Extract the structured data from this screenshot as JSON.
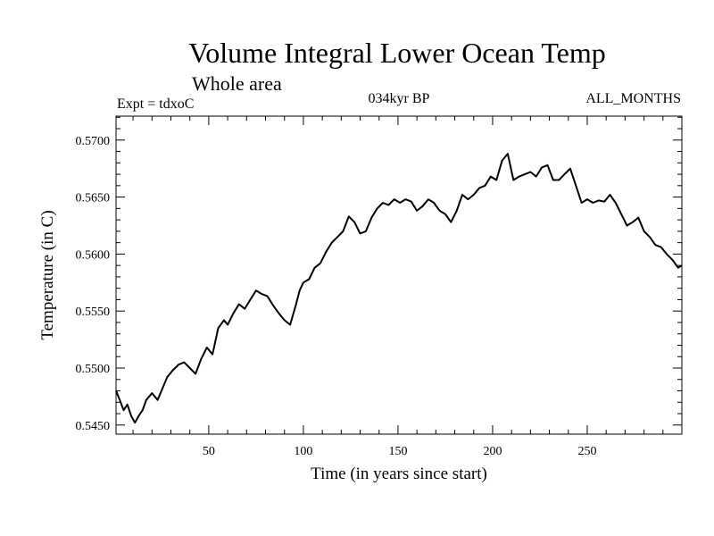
{
  "chart_data": {
    "type": "line",
    "title": "Volume Integral Lower Ocean Temp",
    "subtitle": "Whole area",
    "info_left": "Expt = tdxoC",
    "info_center": "034kyr BP",
    "info_right": "ALL_MONTHS",
    "xlabel": "Time (in years since start)",
    "ylabel": "Temperature (in C)",
    "xlim": [
      1,
      300
    ],
    "ylim": [
      0.5442,
      0.5721
    ],
    "x_ticks": [
      50,
      100,
      150,
      200,
      250
    ],
    "x_tick_labels": [
      "50",
      "100",
      "150",
      "200",
      "250"
    ],
    "x_minor_step": 10,
    "y_ticks": [
      0.545,
      0.55,
      0.555,
      0.56,
      0.565,
      0.57
    ],
    "y_tick_labels": [
      "0.5450",
      "0.5500",
      "0.5550",
      "0.5600",
      "0.5650",
      "0.5700"
    ],
    "y_minor_step": 0.001,
    "grid": false,
    "colors": {
      "line": "#000000",
      "axes": "#000000",
      "background": "#ffffff"
    },
    "series": [
      {
        "x": [
          1,
          3,
          5,
          7,
          9,
          11,
          13,
          15,
          17,
          20,
          23,
          25,
          28,
          31,
          34,
          37,
          40,
          43,
          46,
          49,
          52,
          55,
          58,
          60,
          63,
          66,
          69,
          72,
          75,
          78,
          81,
          84,
          87,
          90,
          93,
          96,
          98,
          100,
          103,
          106,
          109,
          112,
          115,
          118,
          121,
          124,
          127,
          130,
          133,
          136,
          139,
          142,
          145,
          148,
          151,
          154,
          157,
          160,
          163,
          166,
          169,
          172,
          175,
          178,
          181,
          184,
          187,
          190,
          193,
          196,
          199,
          202,
          205,
          208,
          211,
          214,
          217,
          220,
          223,
          226,
          229,
          232,
          235,
          238,
          241,
          244,
          247,
          250,
          253,
          256,
          259,
          262,
          265,
          268,
          271,
          274,
          277,
          280,
          283,
          286,
          289,
          292,
          295,
          298,
          300
        ],
        "values": [
          0.548,
          0.5472,
          0.5463,
          0.5468,
          0.5458,
          0.5452,
          0.5458,
          0.5463,
          0.5472,
          0.5478,
          0.5472,
          0.548,
          0.5492,
          0.5498,
          0.5503,
          0.5505,
          0.55,
          0.5495,
          0.5508,
          0.5518,
          0.5512,
          0.5535,
          0.5542,
          0.5538,
          0.5548,
          0.5556,
          0.5552,
          0.556,
          0.5568,
          0.5565,
          0.5563,
          0.5555,
          0.5548,
          0.5542,
          0.5538,
          0.5555,
          0.5568,
          0.5575,
          0.5578,
          0.5588,
          0.5592,
          0.5602,
          0.561,
          0.5615,
          0.562,
          0.5633,
          0.5628,
          0.5618,
          0.562,
          0.5632,
          0.564,
          0.5645,
          0.5643,
          0.5648,
          0.5645,
          0.5648,
          0.5646,
          0.5638,
          0.5642,
          0.5648,
          0.5645,
          0.5638,
          0.5635,
          0.5628,
          0.5638,
          0.5652,
          0.5648,
          0.5652,
          0.5658,
          0.566,
          0.5668,
          0.5665,
          0.5682,
          0.5688,
          0.5665,
          0.5668,
          0.567,
          0.5672,
          0.5668,
          0.5676,
          0.5678,
          0.5665,
          0.5665,
          0.567,
          0.5675,
          0.566,
          0.5645,
          0.5648,
          0.5645,
          0.5647,
          0.5646,
          0.5652,
          0.5645,
          0.5635,
          0.5625,
          0.5628,
          0.5632,
          0.562,
          0.5615,
          0.5608,
          0.5606,
          0.56,
          0.5595,
          0.5588,
          0.559
        ]
      }
    ]
  }
}
